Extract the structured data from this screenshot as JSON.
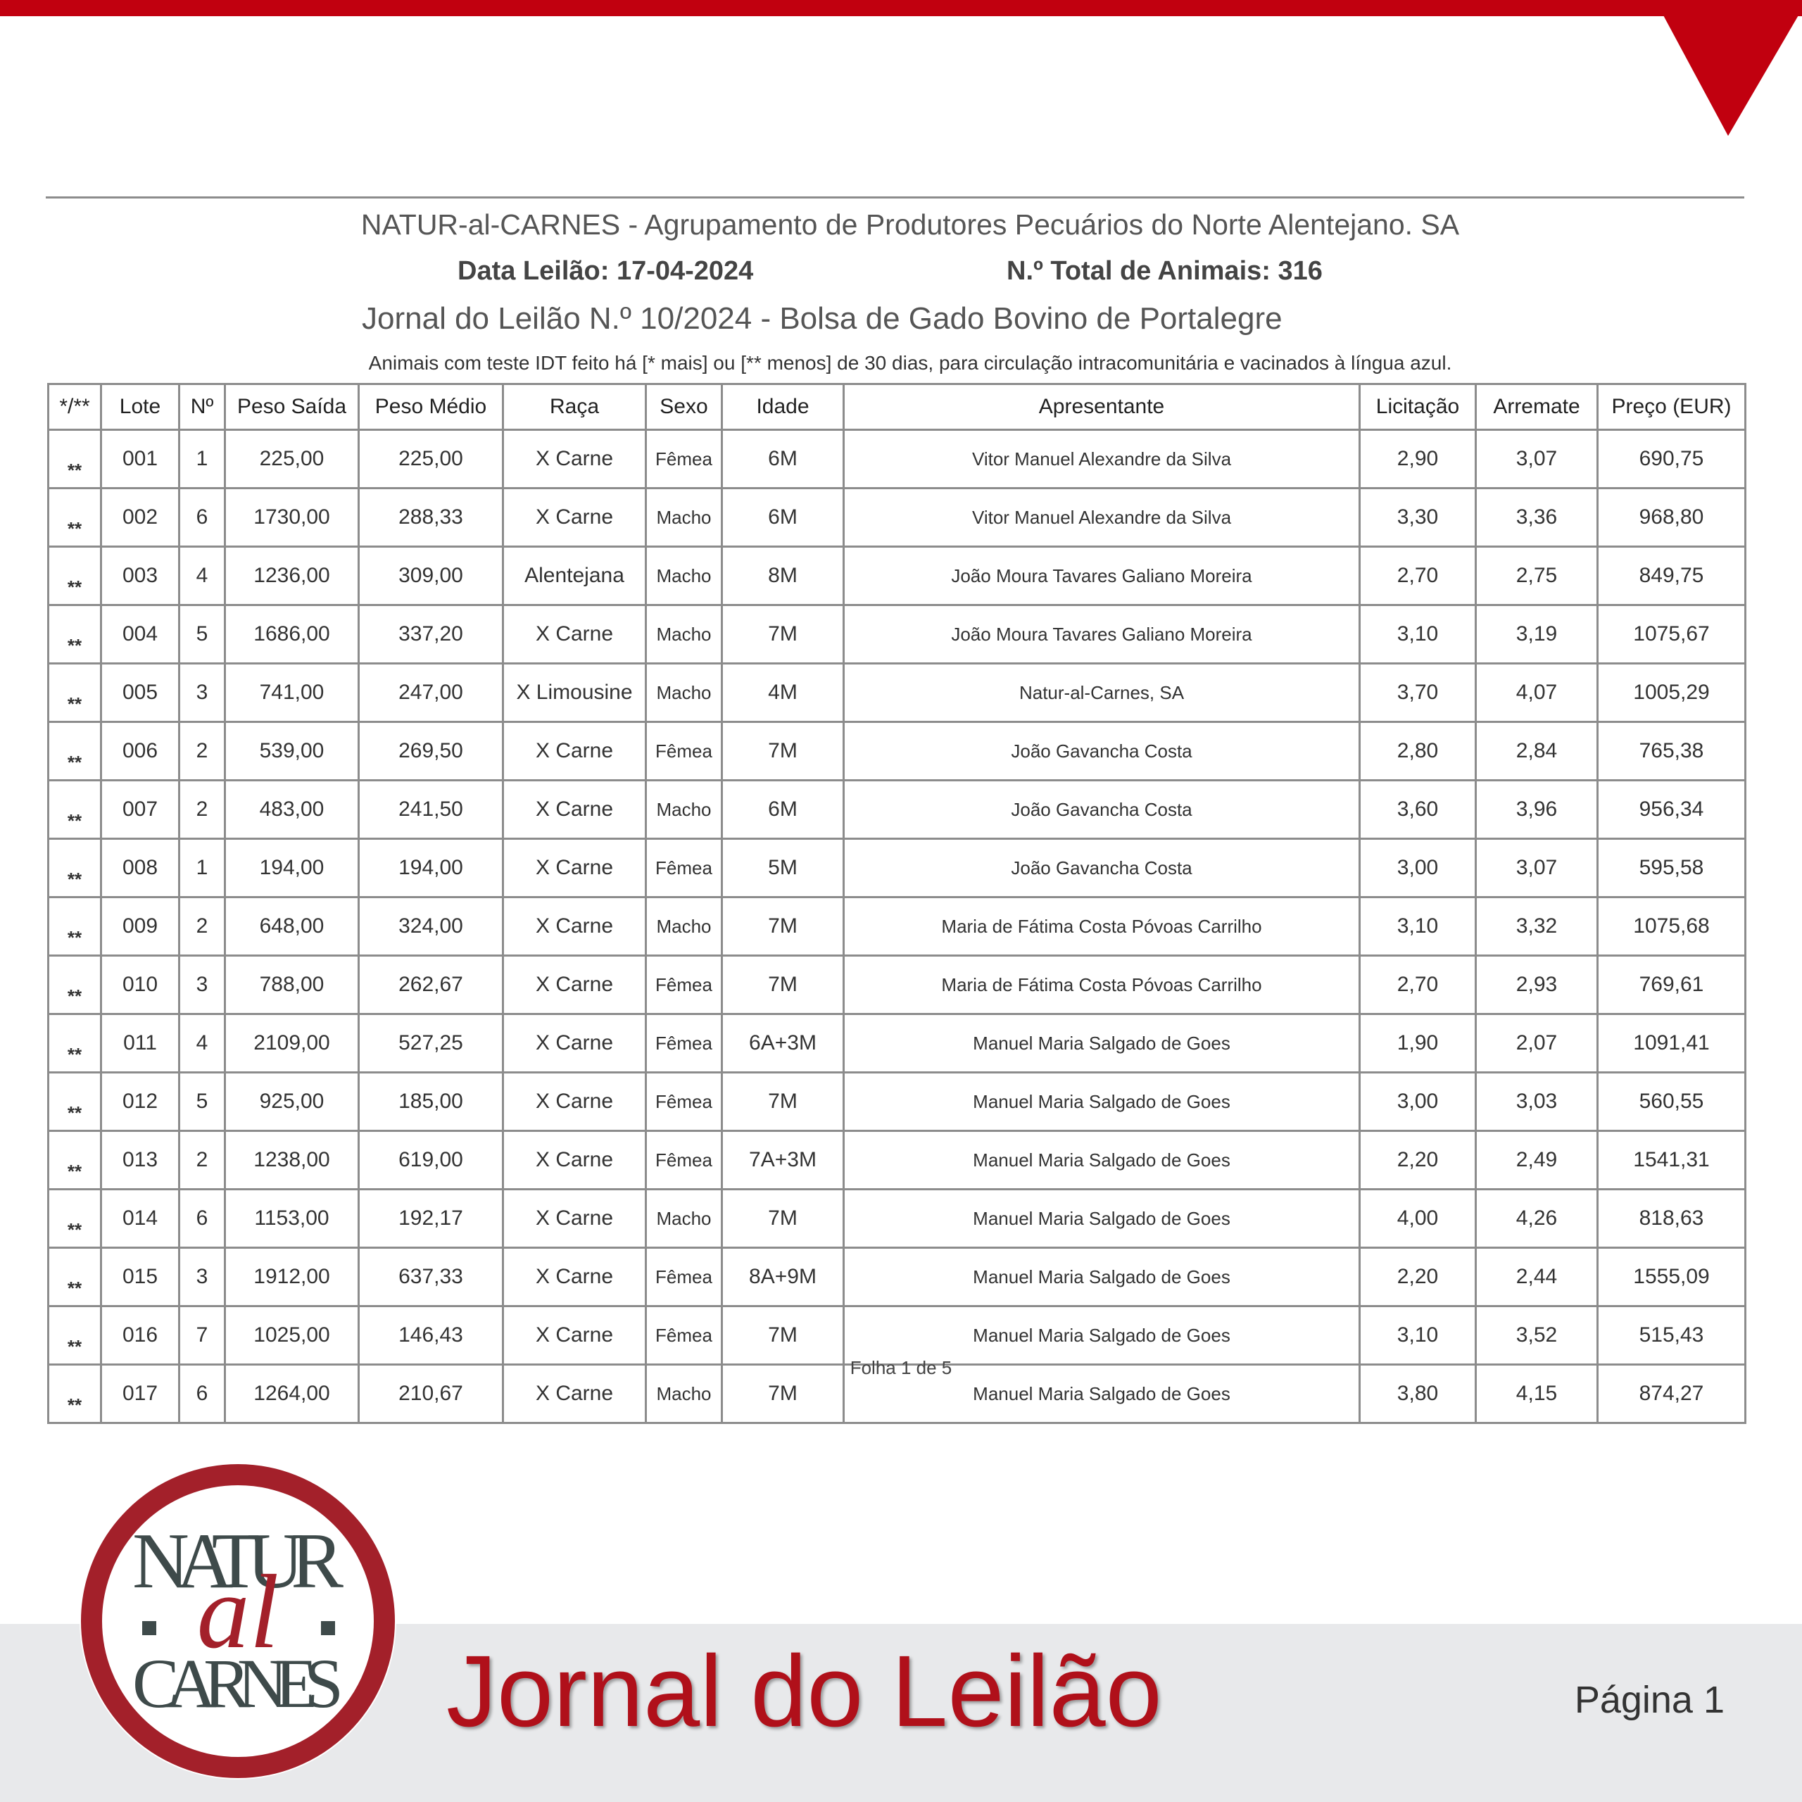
{
  "header": {
    "title": "NATUR-al-CARNES - Agrupamento de Produtores Pecuários do Norte Alentejano. SA",
    "date": "Data Leilão: 17-04-2024",
    "total": "N.º Total de Animais: 316",
    "subtitle": "Jornal do Leilão N.º 10/2024 - Bolsa de Gado Bovino de Portalegre",
    "note": "Animais com teste IDT feito há [* mais] ou [** menos] de 30 dias, para circulação intracomunitária e vacinados à língua azul."
  },
  "table": {
    "columns": [
      "*/**",
      "Lote",
      "Nº",
      "Peso Saída",
      "Peso Médio",
      "Raça",
      "Sexo",
      "Idade",
      "Apresentante",
      "Licitação",
      "Arremate",
      "Preço (EUR)"
    ],
    "rows": [
      [
        "**",
        "001",
        "1",
        "225,00",
        "225,00",
        "X Carne",
        "Fêmea",
        "6M",
        "Vitor Manuel Alexandre da Silva",
        "2,90",
        "3,07",
        "690,75"
      ],
      [
        "**",
        "002",
        "6",
        "1730,00",
        "288,33",
        "X Carne",
        "Macho",
        "6M",
        "Vitor Manuel Alexandre da Silva",
        "3,30",
        "3,36",
        "968,80"
      ],
      [
        "**",
        "003",
        "4",
        "1236,00",
        "309,00",
        "Alentejana",
        "Macho",
        "8M",
        "João Moura Tavares Galiano Moreira",
        "2,70",
        "2,75",
        "849,75"
      ],
      [
        "**",
        "004",
        "5",
        "1686,00",
        "337,20",
        "X Carne",
        "Macho",
        "7M",
        "João Moura Tavares Galiano Moreira",
        "3,10",
        "3,19",
        "1075,67"
      ],
      [
        "**",
        "005",
        "3",
        "741,00",
        "247,00",
        "X Limousine",
        "Macho",
        "4M",
        "Natur-al-Carnes, SA",
        "3,70",
        "4,07",
        "1005,29"
      ],
      [
        "**",
        "006",
        "2",
        "539,00",
        "269,50",
        "X Carne",
        "Fêmea",
        "7M",
        "João Gavancha Costa",
        "2,80",
        "2,84",
        "765,38"
      ],
      [
        "**",
        "007",
        "2",
        "483,00",
        "241,50",
        "X Carne",
        "Macho",
        "6M",
        "João Gavancha Costa",
        "3,60",
        "3,96",
        "956,34"
      ],
      [
        "**",
        "008",
        "1",
        "194,00",
        "194,00",
        "X Carne",
        "Fêmea",
        "5M",
        "João Gavancha Costa",
        "3,00",
        "3,07",
        "595,58"
      ],
      [
        "**",
        "009",
        "2",
        "648,00",
        "324,00",
        "X Carne",
        "Macho",
        "7M",
        "Maria de Fátima Costa Póvoas Carrilho",
        "3,10",
        "3,32",
        "1075,68"
      ],
      [
        "**",
        "010",
        "3",
        "788,00",
        "262,67",
        "X Carne",
        "Fêmea",
        "7M",
        "Maria de Fátima Costa Póvoas Carrilho",
        "2,70",
        "2,93",
        "769,61"
      ],
      [
        "**",
        "011",
        "4",
        "2109,00",
        "527,25",
        "X Carne",
        "Fêmea",
        "6A+3M",
        "Manuel Maria Salgado de Goes",
        "1,90",
        "2,07",
        "1091,41"
      ],
      [
        "**",
        "012",
        "5",
        "925,00",
        "185,00",
        "X Carne",
        "Fêmea",
        "7M",
        "Manuel Maria Salgado de Goes",
        "3,00",
        "3,03",
        "560,55"
      ],
      [
        "**",
        "013",
        "2",
        "1238,00",
        "619,00",
        "X Carne",
        "Fêmea",
        "7A+3M",
        "Manuel Maria Salgado de Goes",
        "2,20",
        "2,49",
        "1541,31"
      ],
      [
        "**",
        "014",
        "6",
        "1153,00",
        "192,17",
        "X Carne",
        "Macho",
        "7M",
        "Manuel Maria Salgado de Goes",
        "4,00",
        "4,26",
        "818,63"
      ],
      [
        "**",
        "015",
        "3",
        "1912,00",
        "637,33",
        "X Carne",
        "Fêmea",
        "8A+9M",
        "Manuel Maria Salgado de Goes",
        "2,20",
        "2,44",
        "1555,09"
      ],
      [
        "**",
        "016",
        "7",
        "1025,00",
        "146,43",
        "X Carne",
        "Fêmea",
        "7M",
        "Manuel Maria Salgado de Goes",
        "3,10",
        "3,52",
        "515,43"
      ],
      [
        "**",
        "017",
        "6",
        "1264,00",
        "210,67",
        "X Carne",
        "Macho",
        "7M",
        "Manuel Maria Salgado de Goes",
        "3,80",
        "4,15",
        "874,27"
      ]
    ]
  },
  "sheet": "Folha 1 de 5",
  "logo": {
    "top": "NATUR",
    "middle": "al",
    "bottom": "CARNES"
  },
  "footer": {
    "title": "Jornal do Leilão",
    "page": "Página 1"
  }
}
